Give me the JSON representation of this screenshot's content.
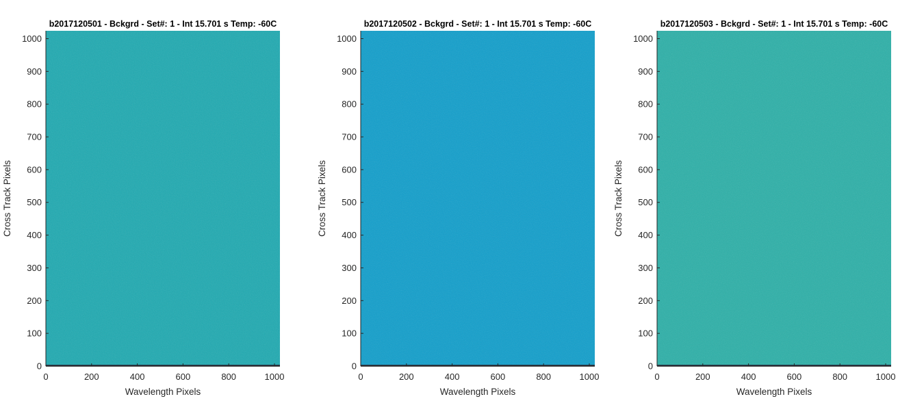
{
  "chart_data": [
    {
      "type": "heatmap",
      "title": "b2017120501 - Bckgrd - Set#: 1 - Int 15.701 s Temp: -60C",
      "xlabel": "Wavelength Pixels",
      "ylabel": "Cross Track Pixels",
      "xlim": [
        0,
        1024
      ],
      "ylim": [
        0,
        1024
      ],
      "xticks": [
        0,
        200,
        400,
        600,
        800,
        1000
      ],
      "yticks": [
        0,
        100,
        200,
        300,
        400,
        500,
        600,
        700,
        800,
        900,
        1000
      ],
      "dominant_color": "#21aab1",
      "noise_color": "#3db89f",
      "grid": false
    },
    {
      "type": "heatmap",
      "title": "b2017120502 - Bckgrd - Set#: 1 - Int 15.701 s Temp: -60C",
      "xlabel": "Wavelength Pixels",
      "ylabel": "Cross Track Pixels",
      "xlim": [
        0,
        1024
      ],
      "ylim": [
        0,
        1024
      ],
      "xticks": [
        0,
        200,
        400,
        600,
        800,
        1000
      ],
      "yticks": [
        0,
        100,
        200,
        300,
        400,
        500,
        600,
        700,
        800,
        900,
        1000
      ],
      "dominant_color": "#139fcb",
      "noise_color": "#1aa8c4",
      "grid": false
    },
    {
      "type": "heatmap",
      "title": "b2017120503 - Bckgrd - Set#: 1 - Int 15.701 s Temp: -60C",
      "xlabel": "Wavelength Pixels",
      "ylabel": "Cross Track Pixels",
      "xlim": [
        0,
        1024
      ],
      "ylim": [
        0,
        1024
      ],
      "xticks": [
        0,
        200,
        400,
        600,
        800,
        1000
      ],
      "yticks": [
        0,
        100,
        200,
        300,
        400,
        500,
        600,
        700,
        800,
        900,
        1000
      ],
      "dominant_color": "#2eb0a8",
      "noise_color": "#5cc08a",
      "grid": false
    }
  ]
}
